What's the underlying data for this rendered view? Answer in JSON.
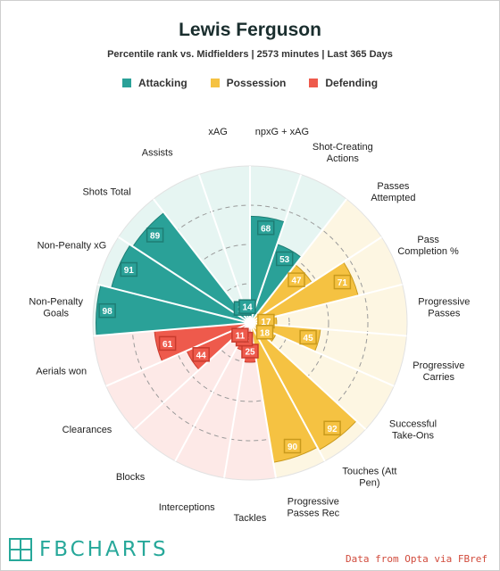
{
  "header": {
    "title": "Lewis Ferguson",
    "subtitle": "Percentile rank vs. Midfielders | 2573 minutes | Last 365 Days"
  },
  "legend": [
    {
      "label": "Attacking",
      "color": "#2aa198"
    },
    {
      "label": "Possession",
      "color": "#f5c242"
    },
    {
      "label": "Defending",
      "color": "#ee5a4c"
    }
  ],
  "footer": {
    "brand": "FBCHARTS",
    "credit": "Data from Opta via FBref"
  },
  "chart_data": {
    "type": "radar-bar",
    "title": "Lewis Ferguson",
    "subtitle": "Percentile rank vs. Midfielders | 2573 minutes | Last 365 Days",
    "rlim": [
      0,
      100
    ],
    "grid": true,
    "legend_position": "top-center",
    "groups": {
      "Attacking": {
        "fill": "#2aa198",
        "bg": "#e6f5f2",
        "border": "#1e7d74"
      },
      "Possession": {
        "fill": "#f5c242",
        "bg": "#fdf6e2",
        "border": "#c99a1c"
      },
      "Defending": {
        "fill": "#ee5a4c",
        "bg": "#fde9e7",
        "border": "#c83a2d"
      }
    },
    "categories": [
      {
        "label": [
          "npxG + xAG"
        ],
        "value": 68,
        "group": "Attacking"
      },
      {
        "label": [
          "Shot-Creating",
          "Actions"
        ],
        "value": 53,
        "group": "Attacking"
      },
      {
        "label": [
          "Passes",
          "Attempted"
        ],
        "value": 47,
        "group": "Possession"
      },
      {
        "label": [
          "Pass",
          "Completion %"
        ],
        "value": 71,
        "group": "Possession"
      },
      {
        "label": [
          "Progressive",
          "Passes"
        ],
        "value": 17,
        "group": "Possession"
      },
      {
        "label": [
          "Progressive",
          "Carries"
        ],
        "value": 45,
        "group": "Possession"
      },
      {
        "label": [
          "Successful",
          "Take-Ons"
        ],
        "value": 18,
        "group": "Possession"
      },
      {
        "label": [
          "Touches (Att",
          "Pen)"
        ],
        "value": 92,
        "group": "Possession"
      },
      {
        "label": [
          "Progressive",
          "Passes Rec"
        ],
        "value": 90,
        "group": "Possession"
      },
      {
        "label": [
          "Tackles"
        ],
        "value": 25,
        "group": "Defending"
      },
      {
        "label": [
          "Interceptions"
        ],
        "value": 18,
        "group": "Defending"
      },
      {
        "label": [
          "Blocks"
        ],
        "value": 11,
        "group": "Defending"
      },
      {
        "label": [
          "Clearances"
        ],
        "value": 44,
        "group": "Defending"
      },
      {
        "label": [
          "Aerials won"
        ],
        "value": 61,
        "group": "Defending"
      },
      {
        "label": [
          "Non-Penalty",
          "Goals"
        ],
        "value": 98,
        "group": "Attacking"
      },
      {
        "label": [
          "Non-Penalty xG"
        ],
        "value": 91,
        "group": "Attacking"
      },
      {
        "label": [
          "Shots Total"
        ],
        "value": 89,
        "group": "Attacking"
      },
      {
        "label": [
          "Assists"
        ],
        "value": 11,
        "group": "Attacking"
      },
      {
        "label": [
          "xAG"
        ],
        "value": 14,
        "group": "Attacking"
      }
    ]
  }
}
